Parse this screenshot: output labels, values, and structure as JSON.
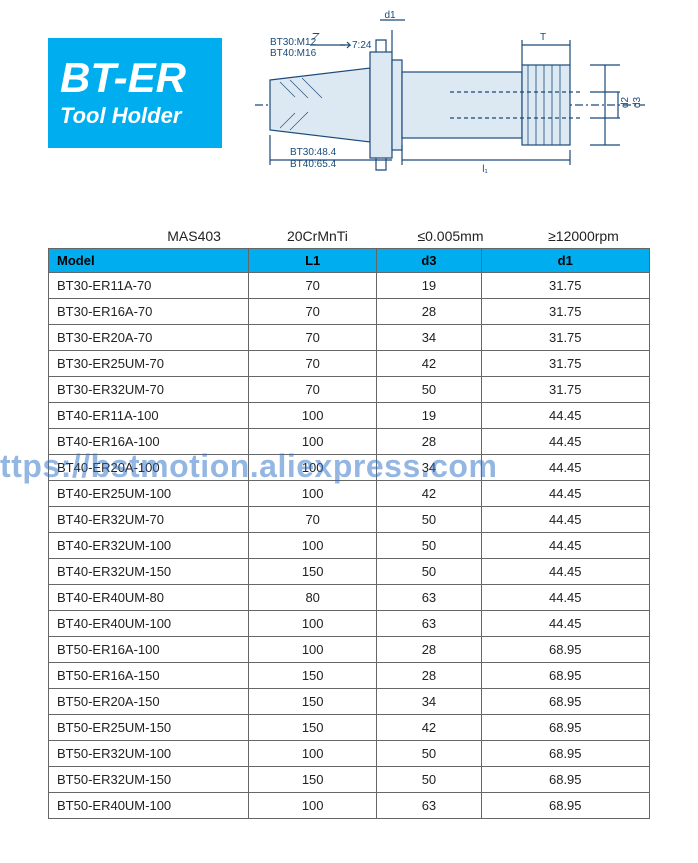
{
  "title": {
    "main": "BT-ER",
    "sub": "Tool Holder"
  },
  "diagram": {
    "labels": {
      "taper": "7:24",
      "bt30m": "BT30:M12",
      "bt40m": "BT40:M16",
      "bt30len": "BT30:48.4",
      "bt40len": "BT40:65.4",
      "d1": "d1",
      "d2": "d2",
      "d3": "d3",
      "l1": "l₁",
      "T": "T"
    },
    "stroke": "#1a4a7a",
    "fill": "#dce8f2"
  },
  "specs": {
    "standard": "MAS403",
    "material": "20CrMnTi",
    "runout": "≤0.005mm",
    "speed": "≥12000rpm"
  },
  "table": {
    "columns": [
      "Model",
      "L1",
      "d3",
      "d1"
    ],
    "rows": [
      [
        "BT30-ER11A-70",
        "70",
        "19",
        "31.75"
      ],
      [
        "BT30-ER16A-70",
        "70",
        "28",
        "31.75"
      ],
      [
        "BT30-ER20A-70",
        "70",
        "34",
        "31.75"
      ],
      [
        "BT30-ER25UM-70",
        "70",
        "42",
        "31.75"
      ],
      [
        "BT30-ER32UM-70",
        "70",
        "50",
        "31.75"
      ],
      [
        "BT40-ER11A-100",
        "100",
        "19",
        "44.45"
      ],
      [
        "BT40-ER16A-100",
        "100",
        "28",
        "44.45"
      ],
      [
        "BT40-ER20A-100",
        "100",
        "34",
        "44.45"
      ],
      [
        "BT40-ER25UM-100",
        "100",
        "42",
        "44.45"
      ],
      [
        "BT40-ER32UM-70",
        "70",
        "50",
        "44.45"
      ],
      [
        "BT40-ER32UM-100",
        "100",
        "50",
        "44.45"
      ],
      [
        "BT40-ER32UM-150",
        "150",
        "50",
        "44.45"
      ],
      [
        "BT40-ER40UM-80",
        "80",
        "63",
        "44.45"
      ],
      [
        "BT40-ER40UM-100",
        "100",
        "63",
        "44.45"
      ],
      [
        "BT50-ER16A-100",
        "100",
        "28",
        "68.95"
      ],
      [
        "BT50-ER16A-150",
        "150",
        "28",
        "68.95"
      ],
      [
        "BT50-ER20A-150",
        "150",
        "34",
        "68.95"
      ],
      [
        "BT50-ER25UM-150",
        "150",
        "42",
        "68.95"
      ],
      [
        "BT50-ER32UM-100",
        "100",
        "50",
        "68.95"
      ],
      [
        "BT50-ER32UM-150",
        "150",
        "50",
        "68.95"
      ],
      [
        "BT50-ER40UM-100",
        "100",
        "63",
        "68.95"
      ]
    ],
    "header_bg": "#00aeef",
    "border_color": "#666666"
  },
  "watermark": "https://bstmotion.aliexpress.com"
}
